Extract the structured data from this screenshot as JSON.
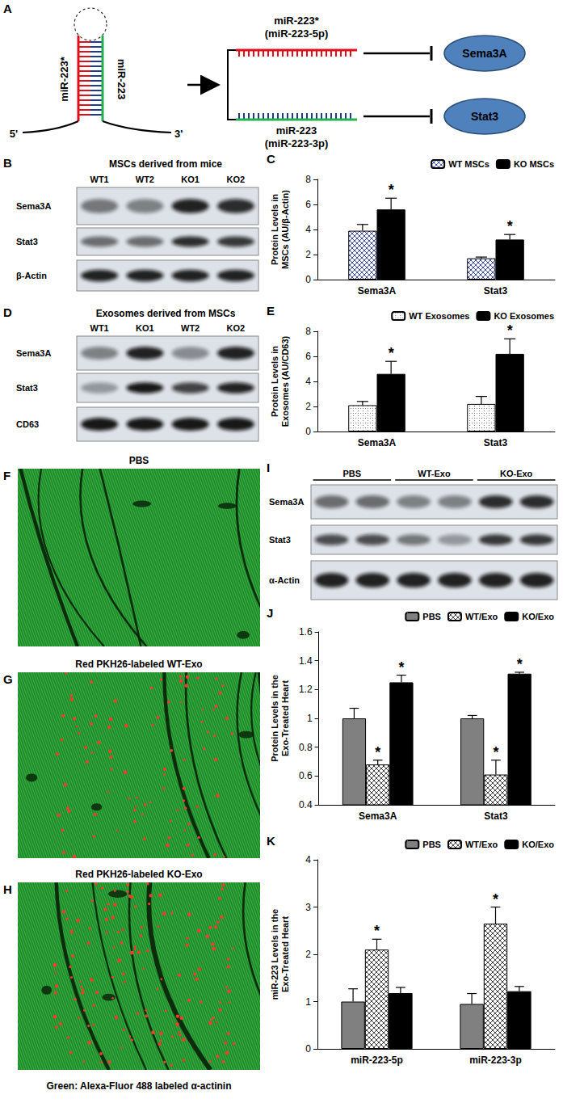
{
  "panel_labels": [
    "A",
    "B",
    "C",
    "D",
    "E",
    "F",
    "G",
    "H",
    "I",
    "J",
    "K"
  ],
  "diagram": {
    "hairpin_left": "miR-223*",
    "hairpin_right": "miR-223",
    "five_prime": "5'",
    "three_prime": "3'",
    "strands": [
      {
        "name": "miR-223*",
        "alias": "(miR-223-5p)",
        "target": "Sema3A"
      },
      {
        "name": "miR-223",
        "alias": "(miR-223-3p)",
        "target": "Stat3"
      }
    ]
  },
  "blots": [
    {
      "title": "MSCs derived from mice",
      "lanes": [
        "WT1",
        "WT2",
        "KO1",
        "KO2"
      ],
      "rows": [
        "Sema3A",
        "Stat3",
        "β-Actin"
      ]
    },
    {
      "title": "Exosomes derived from MSCs",
      "lanes": [
        "WT1",
        "KO1",
        "WT2",
        "KO2"
      ],
      "rows": [
        "Sema3A",
        "Stat3",
        "CD63"
      ]
    },
    {
      "groups": [
        "PBS",
        "WT-Exo",
        "KO-Exo"
      ],
      "rows": [
        "Sema3A",
        "Stat3",
        "α-Actin"
      ]
    }
  ],
  "micrographs": [
    {
      "title": "PBS"
    },
    {
      "title": "Red PKH26-labeled WT-Exo"
    },
    {
      "title": "Red PKH26-labeled KO-Exo"
    }
  ],
  "micrograph_caption": "Green: Alexa-Fluor 488 labeled α-actinin",
  "chart_data": [
    {
      "type": "bar",
      "ylabel": "Protein Levels in\nMSCs (AU/β-Actin)",
      "categories": [
        "Sema3A",
        "Stat3"
      ],
      "series": [
        {
          "name": "WT MSCs",
          "color": "#3b4aa8",
          "values": [
            3.9,
            1.7
          ],
          "errors": [
            0.5,
            0.1
          ],
          "annotations": [
            null,
            null
          ]
        },
        {
          "name": "KO MSCs",
          "color": "#000000",
          "values": [
            5.6,
            3.2
          ],
          "errors": [
            0.9,
            0.4
          ],
          "annotations": [
            "*",
            "*"
          ]
        }
      ],
      "ylim": [
        0,
        8
      ],
      "yticks": [
        0,
        2,
        4,
        6,
        8
      ],
      "grid": false,
      "legend": "upper right"
    },
    {
      "type": "bar",
      "ylabel": "Protein Levels in\nExosomes (AU/CD63)",
      "categories": [
        "Sema3A",
        "Stat3"
      ],
      "series": [
        {
          "name": "WT Exosomes",
          "color": "#7f7f7f",
          "values": [
            2.1,
            2.2
          ],
          "errors": [
            0.3,
            0.6
          ],
          "annotations": [
            null,
            null
          ]
        },
        {
          "name": "KO Exosomes",
          "color": "#000000",
          "values": [
            4.6,
            6.2
          ],
          "errors": [
            1.0,
            1.2
          ],
          "annotations": [
            "*",
            "*"
          ]
        }
      ],
      "ylim": [
        0,
        8
      ],
      "yticks": [
        0,
        2,
        4,
        6,
        8
      ],
      "grid": false,
      "legend": "upper right"
    },
    {
      "type": "bar",
      "ylabel": "Protein Levels in the\nExo-Treated Heart",
      "categories": [
        "Sema3A",
        "Stat3"
      ],
      "series": [
        {
          "name": "PBS",
          "color": "#808080",
          "values": [
            1.0,
            1.0
          ],
          "errors": [
            0.07,
            0.02
          ],
          "annotations": [
            null,
            null
          ]
        },
        {
          "name": "WT/Exo",
          "color": "#404040",
          "values": [
            0.68,
            0.61
          ],
          "errors": [
            0.03,
            0.1
          ],
          "annotations": [
            "*",
            "*"
          ]
        },
        {
          "name": "KO/Exo",
          "color": "#000000",
          "values": [
            1.25,
            1.31
          ],
          "errors": [
            0.05,
            0.01
          ],
          "annotations": [
            "*",
            "*"
          ]
        }
      ],
      "ylim": [
        0.4,
        1.6
      ],
      "yticks": [
        0.4,
        0.6,
        0.8,
        1,
        1.2,
        1.4,
        1.6
      ],
      "grid": false,
      "legend": "upper right"
    },
    {
      "type": "bar",
      "ylabel": "miR-223 Levels in the\nExo-Treated Heart",
      "categories": [
        "miR-223-5p",
        "miR-223-3p"
      ],
      "series": [
        {
          "name": "PBS",
          "color": "#808080",
          "values": [
            1.0,
            0.95
          ],
          "errors": [
            0.27,
            0.22
          ],
          "annotations": [
            null,
            null
          ]
        },
        {
          "name": "WT/Exo",
          "color": "#404040",
          "values": [
            2.1,
            2.65
          ],
          "errors": [
            0.22,
            0.35
          ],
          "annotations": [
            "*",
            "*"
          ]
        },
        {
          "name": "KO/Exo",
          "color": "#000000",
          "values": [
            1.18,
            1.22
          ],
          "errors": [
            0.12,
            0.1
          ],
          "annotations": [
            null,
            null
          ]
        }
      ],
      "ylim": [
        0,
        4
      ],
      "yticks": [
        0,
        1,
        2,
        3,
        4
      ],
      "grid": false,
      "legend": "upper right"
    }
  ]
}
